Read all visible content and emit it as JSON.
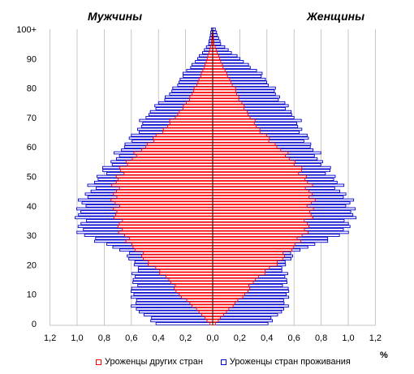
{
  "headers": {
    "men": "Мужчины",
    "women": "Женщины"
  },
  "unit": "%",
  "legend": {
    "foreign_born": "Уроженцы других стран",
    "native_born": "Уроженцы стран проживания"
  },
  "colors": {
    "foreign_born_stroke": "#ff0000",
    "native_born_stroke": "#0000cc",
    "grid": "#b0b0b0",
    "axis": "#000000"
  },
  "chart_data": {
    "type": "bar",
    "orientation": "horizontal",
    "chart_kind": "population-pyramid",
    "bar_style": "outline",
    "xlim": [
      -1.2,
      1.2
    ],
    "ylim": [
      0,
      100
    ],
    "x_ticks": [
      "1,2",
      "1,0",
      "0,8",
      "0,6",
      "0,4",
      "0,2",
      "0,0",
      "0,2",
      "0,4",
      "0,6",
      "0,8",
      "1,0",
      "1,2"
    ],
    "y_ticks": [
      "0",
      "10",
      "20",
      "30",
      "40",
      "50",
      "60",
      "70",
      "80",
      "90",
      "100+"
    ],
    "grid": "vertical",
    "legend_position": "bottom",
    "y_sample_ages": [
      0,
      5,
      10,
      15,
      20,
      25,
      30,
      35,
      40,
      45,
      50,
      55,
      60,
      65,
      70,
      75,
      80,
      85,
      90,
      95,
      100
    ],
    "series": [
      {
        "name": "Уроженцы стран проживания",
        "side": "men",
        "values": [
          0.41,
          0.57,
          0.59,
          0.58,
          0.56,
          0.67,
          0.96,
          0.98,
          0.98,
          0.91,
          0.84,
          0.74,
          0.66,
          0.56,
          0.5,
          0.39,
          0.28,
          0.21,
          0.11,
          0.03,
          0.01
        ]
      },
      {
        "name": "Уроженцы стран проживания",
        "side": "women",
        "values": [
          0.4,
          0.53,
          0.55,
          0.54,
          0.52,
          0.63,
          0.95,
          1.02,
          1.03,
          0.95,
          0.89,
          0.8,
          0.73,
          0.66,
          0.61,
          0.52,
          0.44,
          0.35,
          0.2,
          0.06,
          0.02
        ]
      },
      {
        "name": "Уроженцы других стран",
        "side": "men",
        "values": [
          0.02,
          0.12,
          0.25,
          0.32,
          0.46,
          0.56,
          0.66,
          0.7,
          0.72,
          0.72,
          0.7,
          0.63,
          0.5,
          0.38,
          0.28,
          0.19,
          0.13,
          0.08,
          0.04,
          0.01,
          0.0
        ]
      },
      {
        "name": "Уроженцы других стран",
        "side": "women",
        "values": [
          0.02,
          0.12,
          0.24,
          0.31,
          0.46,
          0.57,
          0.67,
          0.71,
          0.73,
          0.72,
          0.68,
          0.6,
          0.48,
          0.36,
          0.28,
          0.21,
          0.16,
          0.1,
          0.05,
          0.01,
          0.0
        ]
      }
    ]
  }
}
